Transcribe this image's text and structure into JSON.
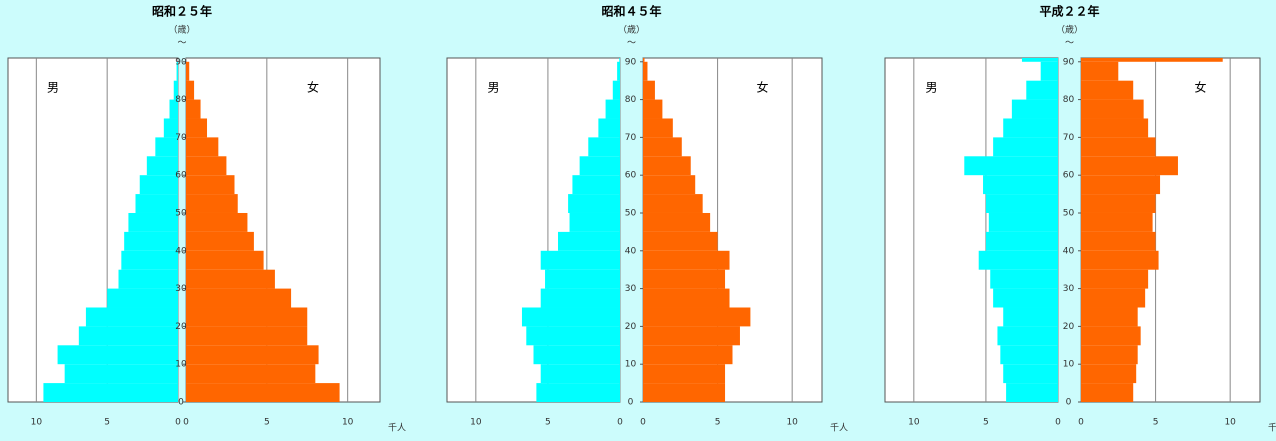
{
  "chart_data": [
    {
      "type": "pyramid",
      "title": "昭和２５年",
      "age_unit": "（歳）",
      "age_mark": "〜",
      "x_unit": "千人",
      "ages": [
        0,
        5,
        10,
        15,
        20,
        25,
        30,
        35,
        40,
        45,
        50,
        55,
        60,
        65,
        70,
        75,
        80,
        85,
        90
      ],
      "ylim": [
        0,
        91
      ],
      "yticks": [
        0,
        10,
        20,
        30,
        40,
        50,
        60,
        70,
        80,
        90
      ],
      "xlim": [
        0,
        12
      ],
      "xticks": [
        0,
        5,
        10
      ],
      "grid": true,
      "series": [
        {
          "name": "男",
          "color": "#00ffff",
          "values": [
            9.5,
            8,
            8.5,
            7,
            6.5,
            5,
            4.2,
            4,
            3.8,
            3.5,
            3,
            2.7,
            2.2,
            1.6,
            1,
            0.6,
            0.3,
            0.1,
            0
          ]
        },
        {
          "name": "女",
          "color": "#ff6600",
          "values": [
            9.5,
            8,
            8.2,
            7.5,
            7.5,
            6.5,
            5.5,
            4.8,
            4.2,
            3.8,
            3.2,
            3,
            2.5,
            2,
            1.3,
            0.9,
            0.5,
            0.2,
            0
          ]
        }
      ]
    },
    {
      "type": "pyramid",
      "title": "昭和４５年",
      "age_unit": "（歳）",
      "age_mark": "〜",
      "x_unit": "千人",
      "ages": [
        0,
        5,
        10,
        15,
        20,
        25,
        30,
        35,
        40,
        45,
        50,
        55,
        60,
        65,
        70,
        75,
        80,
        85,
        90
      ],
      "ylim": [
        0,
        91
      ],
      "yticks": [
        0,
        10,
        20,
        30,
        40,
        50,
        60,
        70,
        80,
        90
      ],
      "xlim": [
        0,
        12
      ],
      "xticks": [
        0,
        5,
        10
      ],
      "grid": true,
      "series": [
        {
          "name": "男",
          "color": "#00ffff",
          "values": [
            5.8,
            5.5,
            6,
            6.5,
            6.8,
            5.5,
            5.2,
            5.5,
            4.3,
            3.5,
            3.6,
            3.3,
            2.8,
            2.2,
            1.5,
            1,
            0.5,
            0.2,
            0.05
          ]
        },
        {
          "name": "女",
          "color": "#ff6600",
          "values": [
            5.5,
            5.5,
            6,
            6.5,
            7.2,
            5.8,
            5.5,
            5.8,
            5,
            4.5,
            4,
            3.5,
            3.2,
            2.6,
            2,
            1.3,
            0.8,
            0.3,
            0.1
          ]
        }
      ]
    },
    {
      "type": "pyramid",
      "title": "平成２２年",
      "age_unit": "（歳）",
      "age_mark": "〜",
      "x_unit": "千人",
      "ages": [
        0,
        5,
        10,
        15,
        20,
        25,
        30,
        35,
        40,
        45,
        50,
        55,
        60,
        65,
        70,
        75,
        80,
        85,
        90
      ],
      "ylim": [
        0,
        91
      ],
      "yticks": [
        0,
        10,
        20,
        30,
        40,
        50,
        60,
        70,
        80,
        90
      ],
      "xlim": [
        0,
        12
      ],
      "xticks": [
        0,
        5,
        10
      ],
      "grid": true,
      "series": [
        {
          "name": "男",
          "color": "#00ffff",
          "values": [
            3.6,
            3.8,
            4,
            4.2,
            3.8,
            4.5,
            4.7,
            5.5,
            5,
            4.8,
            5,
            5.2,
            6.5,
            4.5,
            3.8,
            3.2,
            2.2,
            1.2,
            2.5
          ]
        },
        {
          "name": "女",
          "color": "#ff6600",
          "values": [
            3.5,
            3.7,
            3.8,
            4,
            3.8,
            4.3,
            4.5,
            5.2,
            5,
            4.8,
            5,
            5.3,
            6.5,
            5,
            4.5,
            4.2,
            3.5,
            2.5,
            9.5
          ]
        }
      ]
    }
  ]
}
